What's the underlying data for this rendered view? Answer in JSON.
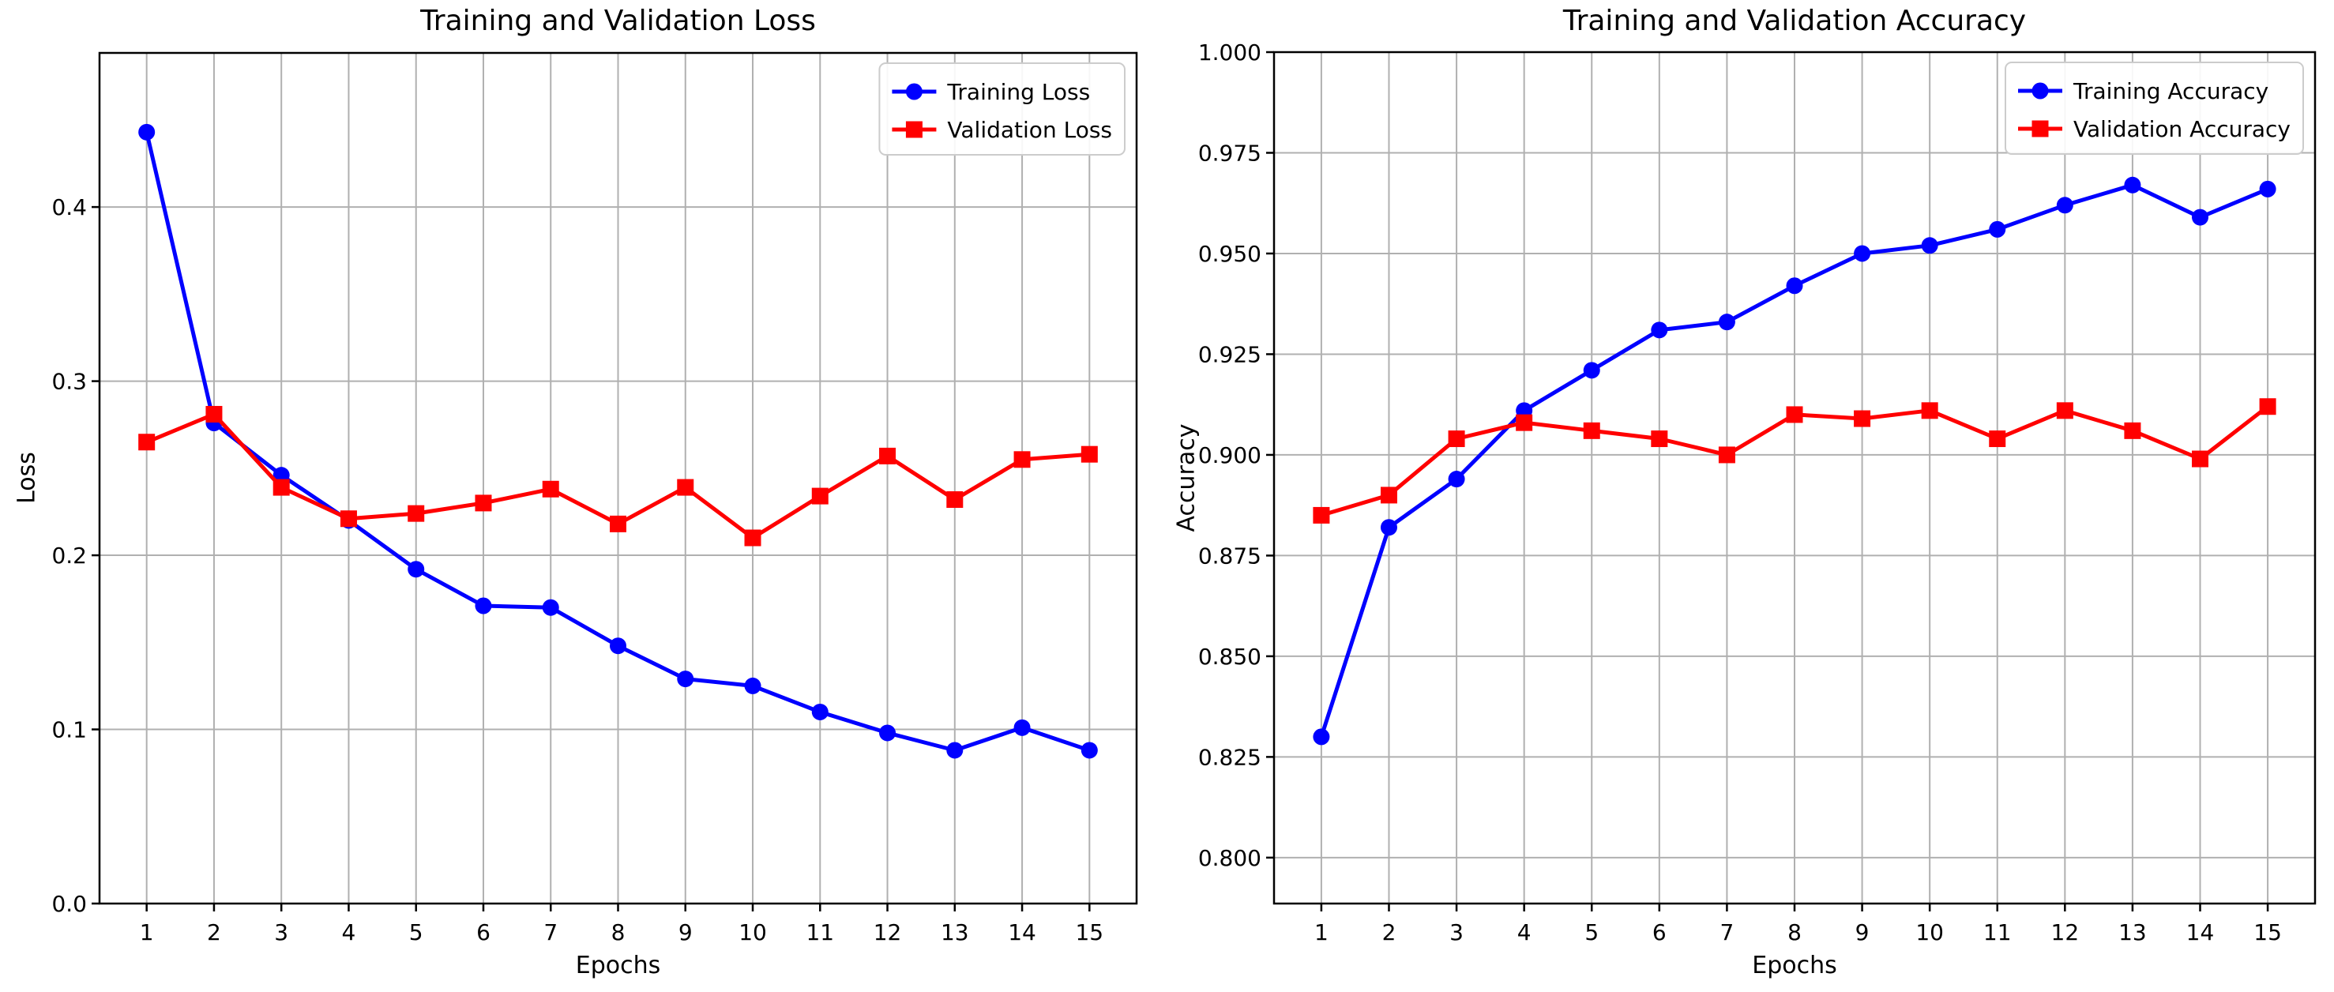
{
  "figure": {
    "background": "#ffffff",
    "grid_color": "#b0b0b0",
    "spine_color": "#000000",
    "legend_border_color": "#cccccc"
  },
  "chart_data": [
    {
      "type": "line",
      "title": "Training and Validation Loss",
      "xlabel": "Epochs",
      "ylabel": "Loss",
      "x": [
        1,
        2,
        3,
        4,
        5,
        6,
        7,
        8,
        9,
        10,
        11,
        12,
        13,
        14,
        15
      ],
      "xtick_labels": [
        "1",
        "2",
        "3",
        "4",
        "5",
        "6",
        "7",
        "8",
        "9",
        "10",
        "11",
        "12",
        "13",
        "14",
        "15"
      ],
      "yticks": [
        0.0,
        0.1,
        0.2,
        0.3,
        0.4
      ],
      "ytick_labels": [
        "0.0",
        "0.1",
        "0.2",
        "0.3",
        "0.4"
      ],
      "xlim": [
        0.3,
        15.7
      ],
      "ylim": [
        0.0,
        0.4885
      ],
      "grid": true,
      "legend_position": "upper right",
      "series": [
        {
          "name": "Training Loss",
          "color": "#0000ff",
          "marker": "circle",
          "values": [
            0.443,
            0.276,
            0.246,
            0.22,
            0.192,
            0.171,
            0.17,
            0.148,
            0.129,
            0.125,
            0.11,
            0.098,
            0.088,
            0.101,
            0.088
          ]
        },
        {
          "name": "Validation Loss",
          "color": "#ff0000",
          "marker": "square",
          "values": [
            0.265,
            0.281,
            0.239,
            0.221,
            0.224,
            0.23,
            0.238,
            0.218,
            0.239,
            0.21,
            0.234,
            0.257,
            0.232,
            0.255,
            0.258
          ]
        }
      ]
    },
    {
      "type": "line",
      "title": "Training and Validation Accuracy",
      "xlabel": "Epochs",
      "ylabel": "Accuracy",
      "x": [
        1,
        2,
        3,
        4,
        5,
        6,
        7,
        8,
        9,
        10,
        11,
        12,
        13,
        14,
        15
      ],
      "xtick_labels": [
        "1",
        "2",
        "3",
        "4",
        "5",
        "6",
        "7",
        "8",
        "9",
        "10",
        "11",
        "12",
        "13",
        "14",
        "15"
      ],
      "yticks": [
        0.8,
        0.825,
        0.85,
        0.875,
        0.9,
        0.925,
        0.95,
        0.975,
        1.0
      ],
      "ytick_labels": [
        "0.800",
        "0.825",
        "0.850",
        "0.875",
        "0.900",
        "0.925",
        "0.950",
        "0.975",
        "1.000"
      ],
      "xlim": [
        0.3,
        15.7
      ],
      "ylim": [
        0.7886,
        1.0
      ],
      "grid": true,
      "legend_position": "upper right",
      "series": [
        {
          "name": "Training Accuracy",
          "color": "#0000ff",
          "marker": "circle",
          "values": [
            0.83,
            0.882,
            0.894,
            0.911,
            0.921,
            0.931,
            0.933,
            0.942,
            0.95,
            0.952,
            0.956,
            0.962,
            0.967,
            0.959,
            0.966
          ]
        },
        {
          "name": "Validation Accuracy",
          "color": "#ff0000",
          "marker": "square",
          "values": [
            0.885,
            0.89,
            0.904,
            0.908,
            0.906,
            0.904,
            0.9,
            0.91,
            0.909,
            0.911,
            0.904,
            0.911,
            0.906,
            0.899,
            0.912
          ]
        }
      ]
    }
  ]
}
